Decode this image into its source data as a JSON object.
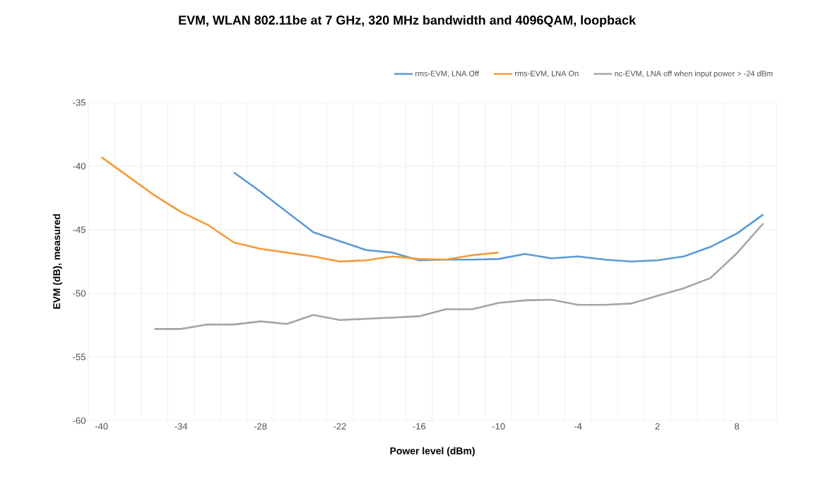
{
  "chart_data": {
    "type": "line",
    "title": "EVM, WLAN 802.11be at 7 GHz, 320 MHz bandwidth and 4096QAM, loopback",
    "xlabel": "Power level (dBm)",
    "ylabel": "EVM (dB), measured",
    "categories": [
      "-40",
      null,
      null,
      "-34",
      null,
      null,
      "-28",
      null,
      null,
      "-22",
      null,
      null,
      "-16",
      null,
      null,
      "-10",
      null,
      null,
      "-4",
      null,
      null,
      "2",
      null,
      null,
      "8",
      null
    ],
    "series": [
      {
        "name": "rms-EVM, LNA Off",
        "color": "#5b9bd5",
        "values": [
          null,
          null,
          null,
          null,
          null,
          -40.5,
          -42.0,
          -43.6,
          -45.2,
          -45.9,
          -46.6,
          -46.8,
          -47.4,
          -47.35,
          -47.35,
          -47.3,
          -46.9,
          -47.25,
          -47.1,
          -47.35,
          -47.5,
          -47.4,
          -47.1,
          -46.35,
          -45.3,
          -43.8
        ]
      },
      {
        "name": "rms-EVM, LNA On",
        "color": "#f59a38",
        "values": [
          -39.3,
          -40.8,
          -42.3,
          -43.6,
          -44.6,
          -46.0,
          -46.5,
          -46.8,
          -47.1,
          -47.5,
          -47.4,
          -47.1,
          -47.3,
          -47.35,
          -47.0,
          -46.8,
          null,
          null,
          null,
          null,
          null,
          null,
          null,
          null,
          null,
          null
        ]
      },
      {
        "name": "nc-EVM, LNA off when input power > -24 dBm",
        "color": "#a5a5a5",
        "values": [
          null,
          null,
          -52.8,
          -52.8,
          -52.45,
          -52.45,
          -52.2,
          -52.4,
          -51.7,
          -52.1,
          -52.0,
          -51.9,
          -51.8,
          -51.25,
          -51.25,
          -50.75,
          -50.55,
          -50.5,
          -50.9,
          -50.9,
          -50.8,
          -50.2,
          -49.6,
          -48.8,
          -46.85,
          -44.5
        ]
      }
    ],
    "ylim": [
      -60,
      -35
    ],
    "yticks": [
      -60,
      -55,
      -50,
      -45,
      -40,
      -35
    ],
    "grid": true,
    "legend": "top right",
    "marker": "none",
    "line_style": "solid"
  }
}
